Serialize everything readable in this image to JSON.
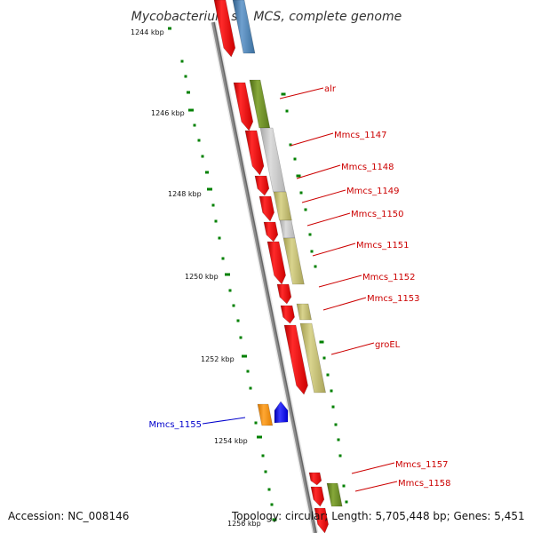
{
  "title": "Mycobacterium sp. MCS, complete genome",
  "footer": {
    "accession": "Accession: NC_008146",
    "topology": "Topology: circular; Length: 5,705,448 bp; Genes: 5,451"
  },
  "ticks": [
    "1244 kbp",
    "1246 kbp",
    "1248 kbp",
    "1250 kbp",
    "1252 kbp",
    "1254 kbp",
    "1256 kbp"
  ],
  "genes": [
    {
      "name": "alr",
      "color": "#cc0000"
    },
    {
      "name": "Mmcs_1147",
      "color": "#cc0000"
    },
    {
      "name": "Mmcs_1148",
      "color": "#cc0000"
    },
    {
      "name": "Mmcs_1149",
      "color": "#cc0000"
    },
    {
      "name": "Mmcs_1150",
      "color": "#cc0000"
    },
    {
      "name": "Mmcs_1151",
      "color": "#cc0000"
    },
    {
      "name": "Mmcs_1152",
      "color": "#cc0000"
    },
    {
      "name": "Mmcs_1153",
      "color": "#cc0000"
    },
    {
      "name": "groEL",
      "color": "#cc0000"
    },
    {
      "name": "Mmcs_1155",
      "color": "#0000cc"
    },
    {
      "name": "Mmcs_1157",
      "color": "#cc0000"
    },
    {
      "name": "Mmcs_1158",
      "color": "#cc0000"
    }
  ],
  "colors": {
    "backbone": "#8c8c8c",
    "cds": "#ff0000",
    "blue_gene": "#4682b4",
    "orange_gene": "#ff8c00",
    "bright_blue_gene": "#0000ff",
    "cog_green": "#6b8e23",
    "cog_grey": "#c0c0c0",
    "cog_khaki": "#bdb76b",
    "gc_marks": "#008000"
  }
}
